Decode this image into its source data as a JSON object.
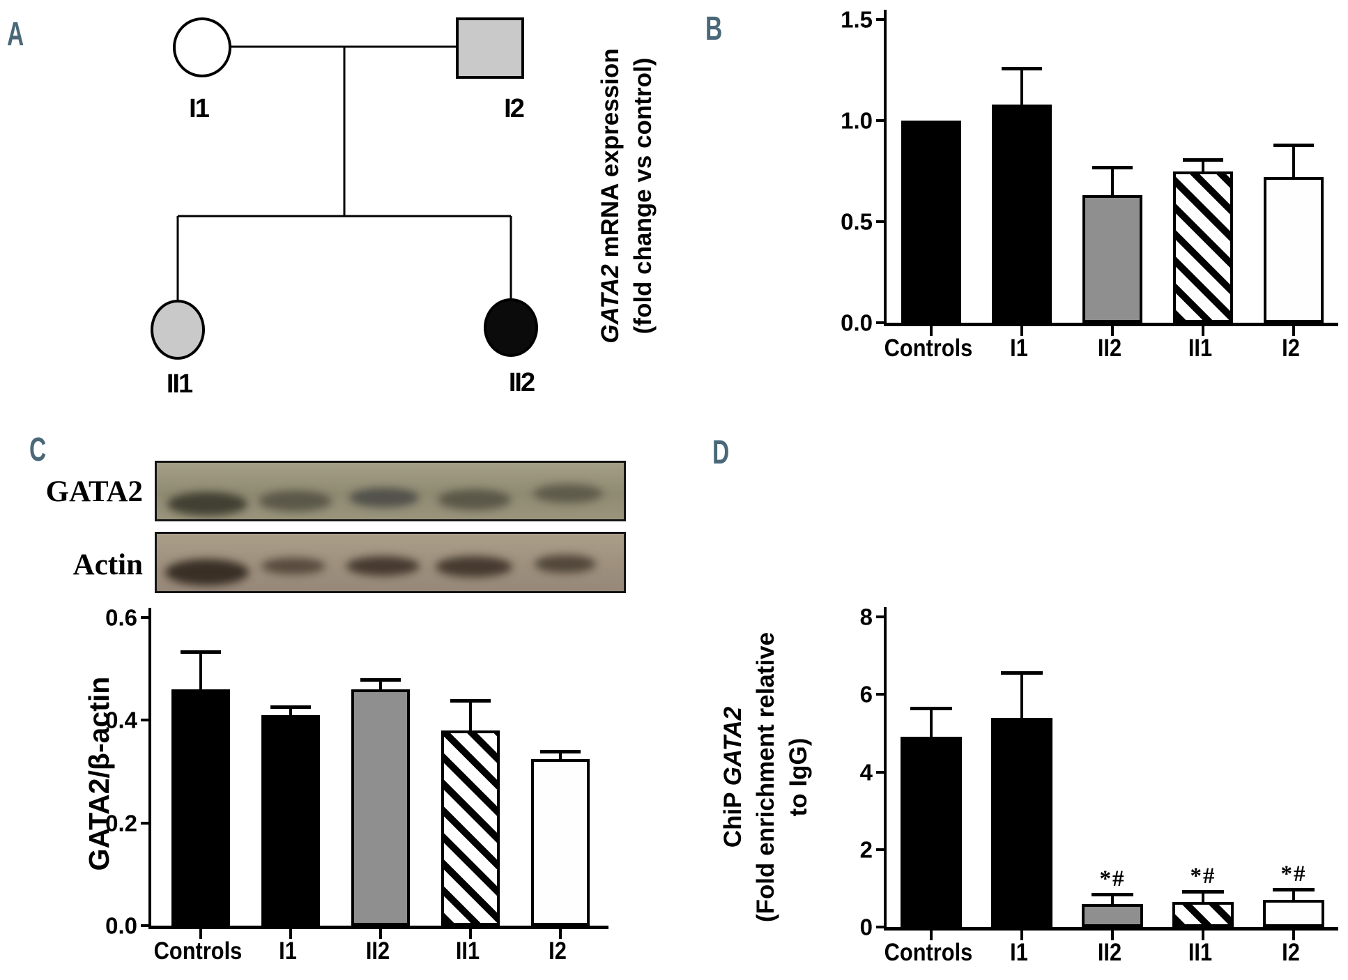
{
  "colors": {
    "panel_letter": "#4a6878",
    "bar_black": "#000000",
    "bar_gray": "#8f8f8f",
    "bar_white": "#fefefe",
    "pedigree_gray": "#c9c9c9",
    "pedigree_black": "#0b0b0b",
    "pedigree_white": "#ffffff",
    "blot_gata2_bg": "#99927b",
    "blot_actin_bg": "#a4957f"
  },
  "panels": {
    "a": {
      "label": "A",
      "pedigree": {
        "members": [
          {
            "id": "I1",
            "shape": "circle",
            "fill": "#ffffff",
            "label": "I1"
          },
          {
            "id": "I2",
            "shape": "square",
            "fill": "#c9c9c9",
            "label": "I2"
          },
          {
            "id": "II1",
            "shape": "circle",
            "fill": "#c9c9c9",
            "label": "II1"
          },
          {
            "id": "II2",
            "shape": "circle",
            "fill": "#0b0b0b",
            "label": "II2"
          }
        ]
      }
    },
    "b": {
      "label": "B"
    },
    "c": {
      "label": "C",
      "blot": {
        "rows": [
          {
            "label": "GATA2",
            "lanes": 5
          },
          {
            "label": "Actin",
            "lanes": 5
          }
        ]
      }
    },
    "d": {
      "label": "D"
    }
  },
  "chart_data": [
    {
      "id": "panel-b",
      "type": "bar",
      "title": "",
      "categories": [
        "Controls",
        "I1",
        "II2",
        "II1",
        "I2"
      ],
      "values": [
        1.0,
        1.08,
        0.63,
        0.75,
        0.72
      ],
      "errors_up": [
        0,
        0.17,
        0.13,
        0.045,
        0.15
      ],
      "bar_styles": [
        "black",
        "black",
        "gray",
        "hatch",
        "white"
      ],
      "annotations": [
        "",
        "",
        "",
        "",
        ""
      ],
      "ylabel_lines": [
        [
          {
            "text": "GATA2",
            "italic": true
          },
          {
            "text": " mRNA expression",
            "italic": false
          }
        ],
        [
          {
            "text": "(fold change vs control)",
            "italic": false
          }
        ]
      ],
      "xlabel": "",
      "yticks": [
        {
          "label": "0.0",
          "value": 0
        },
        {
          "label": "0.5",
          "value": 0.5
        },
        {
          "label": "1.0",
          "value": 1.0
        },
        {
          "label": "1.5",
          "value": 1.5
        }
      ],
      "ylim": [
        0,
        1.5
      ],
      "grid": false,
      "legend": "none"
    },
    {
      "id": "panel-c",
      "type": "bar",
      "title": "",
      "categories": [
        "Controls",
        "I1",
        "II2",
        "II1",
        "I2"
      ],
      "values": [
        0.46,
        0.41,
        0.46,
        0.38,
        0.325
      ],
      "errors_up": [
        0.07,
        0.012,
        0.015,
        0.055,
        0.01
      ],
      "bar_styles": [
        "black",
        "black",
        "gray",
        "hatch",
        "white"
      ],
      "annotations": [
        "",
        "",
        "",
        "",
        ""
      ],
      "ylabel_lines": [
        [
          {
            "text": "GATA2/β-actin",
            "italic": false
          }
        ]
      ],
      "xlabel": "",
      "yticks": [
        {
          "label": "0.0",
          "value": 0
        },
        {
          "label": "0.2",
          "value": 0.2
        },
        {
          "label": "0.4",
          "value": 0.4
        },
        {
          "label": "0.6",
          "value": 0.6
        }
      ],
      "ylim": [
        0,
        0.6
      ],
      "grid": false,
      "legend": "none"
    },
    {
      "id": "panel-d",
      "type": "bar",
      "title": "",
      "categories": [
        "Controls",
        "I1",
        "II2",
        "II1",
        "I2"
      ],
      "values": [
        4.9,
        5.4,
        0.6,
        0.65,
        0.7
      ],
      "errors_up": [
        0.7,
        1.1,
        0.2,
        0.22,
        0.22
      ],
      "bar_styles": [
        "black",
        "black",
        "gray",
        "hatch",
        "white"
      ],
      "annotations": [
        "",
        "",
        "*#",
        "*#",
        "*#"
      ],
      "ylabel_lines": [
        [
          {
            "text": "ChiP ",
            "italic": false
          },
          {
            "text": "GATA2",
            "italic": true
          }
        ],
        [
          {
            "text": "(Fold enrichment relative",
            "italic": false
          }
        ],
        [
          {
            "text": "to IgG)",
            "italic": false
          }
        ]
      ],
      "xlabel": "",
      "yticks": [
        {
          "label": "0",
          "value": 0
        },
        {
          "label": "2",
          "value": 2
        },
        {
          "label": "4",
          "value": 4
        },
        {
          "label": "6",
          "value": 6
        },
        {
          "label": "8",
          "value": 8
        }
      ],
      "ylim": [
        0,
        8
      ],
      "grid": false,
      "legend": "none"
    }
  ]
}
